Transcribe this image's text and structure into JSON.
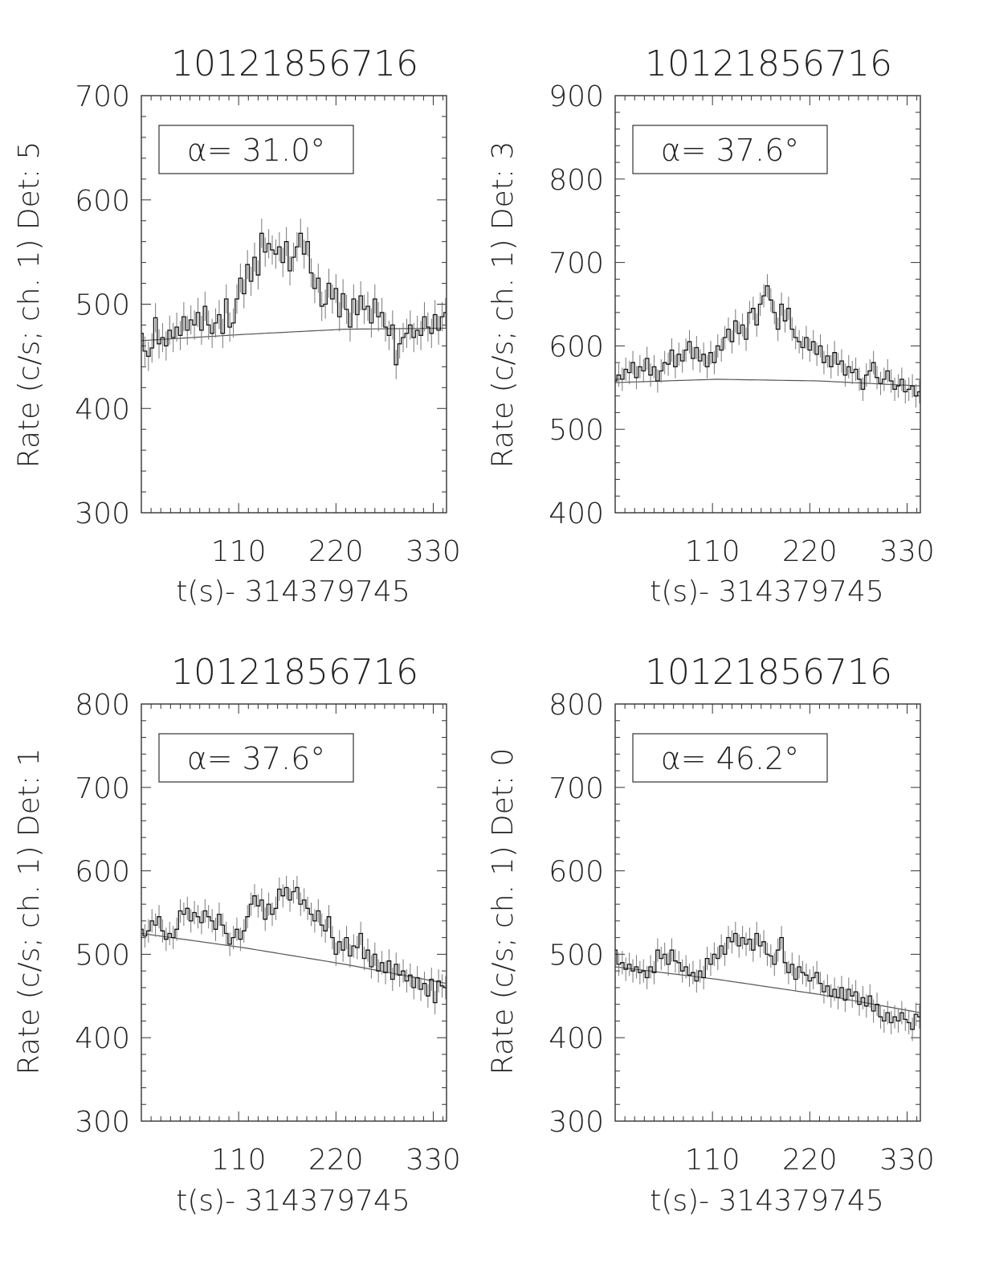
{
  "chart_data": [
    {
      "type": "line",
      "title": "10121856716",
      "xlabel": "t(s)- 314379745",
      "ylabel": "Rate (c/s; ch. 1) Det: 5",
      "annotation": "α= 31.0°",
      "xlim": [
        0,
        345
      ],
      "ylim": [
        300,
        700
      ],
      "xticks": [
        110,
        220,
        330
      ],
      "yticks": [
        300,
        400,
        500,
        600,
        700
      ],
      "xtick_labels": [
        "110",
        "220",
        "330"
      ],
      "ytick_labels": [
        "300",
        "400",
        "500",
        "600",
        "700"
      ],
      "bin_width": 4,
      "error": 14,
      "background": {
        "x": [
          0,
          115,
          230,
          345
        ],
        "y": [
          465,
          471,
          476,
          477
        ]
      },
      "series": [
        {
          "x": [
            0,
            4,
            8,
            12,
            16,
            20,
            24,
            28,
            32,
            36,
            40,
            44,
            48,
            52,
            56,
            60,
            64,
            68,
            72,
            76,
            80,
            84,
            88,
            92,
            96,
            100,
            104,
            108,
            112,
            116,
            120,
            124,
            128,
            132,
            136,
            140,
            144,
            148,
            152,
            156,
            160,
            164,
            168,
            172,
            176,
            180,
            184,
            188,
            192,
            196,
            200,
            204,
            208,
            212,
            216,
            220,
            224,
            228,
            232,
            236,
            240,
            244,
            248,
            252,
            256,
            260,
            264,
            268,
            272,
            276,
            280,
            284,
            288,
            292,
            296,
            300,
            304,
            308,
            312,
            316,
            320,
            324,
            328,
            332,
            336,
            340,
            344
          ],
          "y": [
            472,
            455,
            450,
            458,
            487,
            462,
            468,
            460,
            475,
            468,
            478,
            470,
            488,
            475,
            485,
            480,
            492,
            475,
            498,
            480,
            472,
            482,
            490,
            472,
            505,
            478,
            482,
            505,
            525,
            510,
            538,
            522,
            545,
            528,
            568,
            550,
            558,
            552,
            548,
            555,
            540,
            560,
            532,
            545,
            555,
            568,
            548,
            560,
            530,
            515,
            525,
            498,
            500,
            520,
            505,
            515,
            488,
            510,
            495,
            478,
            505,
            490,
            508,
            495,
            498,
            482,
            505,
            488,
            492,
            478,
            470,
            480,
            442,
            462,
            468,
            472,
            480,
            468,
            475,
            470,
            488,
            478,
            472,
            490,
            475,
            488,
            492
          ]
        }
      ]
    },
    {
      "type": "line",
      "title": "10121856716",
      "xlabel": "t(s)- 314379745",
      "ylabel": "Rate (c/s; ch. 1) Det: 3",
      "annotation": "α= 37.6°",
      "xlim": [
        0,
        345
      ],
      "ylim": [
        400,
        900
      ],
      "xticks": [
        110,
        220,
        330
      ],
      "yticks": [
        400,
        500,
        600,
        700,
        800,
        900
      ],
      "xtick_labels": [
        "110",
        "220",
        "330"
      ],
      "ytick_labels": [
        "400",
        "500",
        "600",
        "700",
        "800",
        "900"
      ],
      "bin_width": 4,
      "error": 14,
      "background": {
        "x": [
          0,
          115,
          230,
          345
        ],
        "y": [
          556,
          560,
          558,
          552
        ]
      },
      "series": [
        {
          "x": [
            0,
            4,
            8,
            12,
            16,
            20,
            24,
            28,
            32,
            36,
            40,
            44,
            48,
            52,
            56,
            60,
            64,
            68,
            72,
            76,
            80,
            84,
            88,
            92,
            96,
            100,
            104,
            108,
            112,
            116,
            120,
            124,
            128,
            132,
            136,
            140,
            144,
            148,
            152,
            156,
            160,
            164,
            168,
            172,
            176,
            180,
            184,
            188,
            192,
            196,
            200,
            204,
            208,
            212,
            216,
            220,
            224,
            228,
            232,
            236,
            240,
            244,
            248,
            252,
            256,
            260,
            264,
            268,
            272,
            276,
            280,
            284,
            288,
            292,
            296,
            300,
            304,
            308,
            312,
            316,
            320,
            324,
            328,
            332,
            336,
            340,
            344
          ],
          "y": [
            558,
            565,
            560,
            572,
            568,
            580,
            562,
            575,
            570,
            585,
            565,
            575,
            558,
            570,
            580,
            578,
            595,
            575,
            590,
            582,
            595,
            605,
            585,
            598,
            582,
            590,
            575,
            592,
            580,
            600,
            595,
            610,
            620,
            605,
            630,
            615,
            625,
            608,
            640,
            645,
            625,
            650,
            660,
            672,
            655,
            640,
            620,
            650,
            630,
            645,
            620,
            610,
            605,
            598,
            610,
            595,
            605,
            590,
            600,
            580,
            588,
            575,
            592,
            578,
            582,
            565,
            575,
            568,
            572,
            560,
            548,
            565,
            570,
            580,
            562,
            555,
            560,
            570,
            558,
            548,
            552,
            560,
            545,
            548,
            552,
            540,
            545
          ]
        }
      ]
    },
    {
      "type": "line",
      "title": "10121856716",
      "xlabel": "t(s)- 314379745",
      "ylabel": "Rate (c/s; ch. 1) Det: 1",
      "annotation": "α= 37.6°",
      "xlim": [
        0,
        345
      ],
      "ylim": [
        300,
        800
      ],
      "xticks": [
        110,
        220,
        330
      ],
      "yticks": [
        300,
        400,
        500,
        600,
        700,
        800
      ],
      "xtick_labels": [
        "110",
        "220",
        "330"
      ],
      "ytick_labels": [
        "300",
        "400",
        "500",
        "600",
        "700",
        "800"
      ],
      "bin_width": 4,
      "error": 14,
      "background": {
        "x": [
          0,
          115,
          230,
          345
        ],
        "y": [
          525,
          508,
          488,
          465
        ]
      },
      "series": [
        {
          "x": [
            0,
            4,
            8,
            12,
            16,
            20,
            24,
            28,
            32,
            36,
            40,
            44,
            48,
            52,
            56,
            60,
            64,
            68,
            72,
            76,
            80,
            84,
            88,
            92,
            96,
            100,
            104,
            108,
            112,
            116,
            120,
            124,
            128,
            132,
            136,
            140,
            144,
            148,
            152,
            156,
            160,
            164,
            168,
            172,
            176,
            180,
            184,
            188,
            192,
            196,
            200,
            204,
            208,
            212,
            216,
            220,
            224,
            228,
            232,
            236,
            240,
            244,
            248,
            252,
            256,
            260,
            264,
            268,
            272,
            276,
            280,
            284,
            288,
            292,
            296,
            300,
            304,
            308,
            312,
            316,
            320,
            324,
            328,
            332,
            336,
            340,
            344
          ],
          "y": [
            530,
            522,
            528,
            540,
            535,
            545,
            528,
            518,
            525,
            520,
            530,
            552,
            548,
            555,
            540,
            550,
            545,
            538,
            552,
            545,
            540,
            530,
            548,
            535,
            525,
            512,
            520,
            530,
            518,
            528,
            545,
            560,
            570,
            558,
            565,
            542,
            560,
            548,
            555,
            578,
            570,
            580,
            565,
            575,
            580,
            560,
            565,
            555,
            548,
            540,
            552,
            535,
            528,
            545,
            520,
            500,
            515,
            505,
            520,
            498,
            510,
            508,
            525,
            495,
            505,
            485,
            500,
            480,
            490,
            478,
            492,
            470,
            488,
            475,
            480,
            468,
            475,
            460,
            472,
            458,
            465,
            450,
            470,
            442,
            468,
            462,
            460
          ]
        }
      ]
    },
    {
      "type": "line",
      "title": "10121856716",
      "xlabel": "t(s)- 314379745",
      "ylabel": "Rate (c/s; ch. 1) Det: 0",
      "annotation": "α= 46.2°",
      "xlim": [
        0,
        345
      ],
      "ylim": [
        300,
        800
      ],
      "xticks": [
        110,
        220,
        330
      ],
      "yticks": [
        300,
        400,
        500,
        600,
        700,
        800
      ],
      "xtick_labels": [
        "110",
        "220",
        "330"
      ],
      "ytick_labels": [
        "300",
        "400",
        "500",
        "600",
        "700",
        "800"
      ],
      "bin_width": 4,
      "error": 14,
      "background": {
        "x": [
          0,
          115,
          230,
          345
        ],
        "y": [
          485,
          470,
          452,
          430
        ]
      },
      "series": [
        {
          "x": [
            0,
            4,
            8,
            12,
            16,
            20,
            24,
            28,
            32,
            36,
            40,
            44,
            48,
            52,
            56,
            60,
            64,
            68,
            72,
            76,
            80,
            84,
            88,
            92,
            96,
            100,
            104,
            108,
            112,
            116,
            120,
            124,
            128,
            132,
            136,
            140,
            144,
            148,
            152,
            156,
            160,
            164,
            168,
            172,
            176,
            180,
            184,
            188,
            192,
            196,
            200,
            204,
            208,
            212,
            216,
            220,
            224,
            228,
            232,
            236,
            240,
            244,
            248,
            252,
            256,
            260,
            264,
            268,
            272,
            276,
            280,
            284,
            288,
            292,
            296,
            300,
            304,
            308,
            312,
            316,
            320,
            324,
            328,
            332,
            336,
            340,
            344
          ],
          "y": [
            505,
            488,
            490,
            482,
            488,
            480,
            485,
            478,
            480,
            472,
            485,
            478,
            505,
            495,
            500,
            488,
            505,
            492,
            490,
            480,
            485,
            475,
            478,
            468,
            480,
            472,
            495,
            488,
            500,
            495,
            510,
            500,
            520,
            515,
            525,
            510,
            520,
            512,
            518,
            505,
            525,
            510,
            515,
            500,
            498,
            488,
            505,
            520,
            490,
            478,
            488,
            470,
            485,
            478,
            475,
            468,
            472,
            478,
            465,
            455,
            462,
            450,
            458,
            448,
            460,
            445,
            458,
            450,
            455,
            440,
            448,
            438,
            450,
            432,
            440,
            425,
            420,
            430,
            418,
            425,
            420,
            430,
            422,
            418,
            410,
            428,
            425
          ]
        }
      ]
    }
  ]
}
